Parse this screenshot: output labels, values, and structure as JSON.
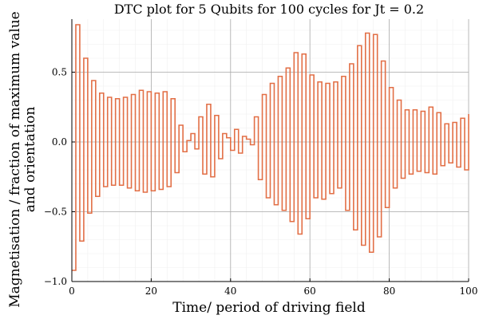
{
  "chart_data": {
    "type": "line",
    "style": "step",
    "title": "DTC plot for 5 Qubits for 100 cycles for Jt = 0.2",
    "xlabel": "Time/ period of driving field",
    "ylabel_line1": "Magnetisation / fraction of maximum value",
    "ylabel_line2": "and orientation",
    "xlim": [
      0,
      100
    ],
    "ylim": [
      -1.0,
      0.88
    ],
    "x_ticks": [
      0,
      20,
      40,
      60,
      80,
      100
    ],
    "x_tick_labels": [
      "0",
      "20",
      "40",
      "60",
      "80",
      "100"
    ],
    "y_ticks": [
      -1.0,
      -0.5,
      0.0,
      0.5
    ],
    "y_tick_labels": [
      "−1.0",
      "−0.5",
      "0.0",
      "0.5"
    ],
    "grid": true,
    "minor_grid": true,
    "legend": "none",
    "colors": {
      "series": "#e26f46",
      "major_grid": "#a9a9a9",
      "minor_grid": "#efefef",
      "axis": "#000000",
      "text": "#000000"
    },
    "series": [
      {
        "x_start": 0,
        "x_step": 1,
        "values": [
          -0.92,
          0.84,
          -0.71,
          0.6,
          -0.51,
          0.44,
          -0.39,
          0.35,
          -0.32,
          0.32,
          -0.31,
          0.31,
          -0.31,
          0.32,
          -0.33,
          0.34,
          -0.35,
          0.37,
          -0.36,
          0.36,
          -0.35,
          0.35,
          -0.34,
          0.36,
          -0.32,
          0.31,
          -0.22,
          0.12,
          -0.07,
          0.01,
          0.06,
          -0.05,
          0.18,
          -0.23,
          0.27,
          -0.25,
          0.19,
          -0.12,
          0.06,
          0.03,
          -0.06,
          0.09,
          -0.08,
          0.04,
          0.02,
          -0.02,
          0.18,
          -0.27,
          0.34,
          -0.4,
          0.42,
          -0.45,
          0.47,
          -0.49,
          0.53,
          -0.57,
          0.64,
          -0.66,
          0.63,
          -0.55,
          0.48,
          -0.4,
          0.43,
          -0.41,
          0.42,
          -0.37,
          0.43,
          -0.33,
          0.47,
          -0.49,
          0.56,
          -0.63,
          0.69,
          -0.74,
          0.78,
          -0.79,
          0.77,
          -0.68,
          0.58,
          -0.47,
          0.39,
          -0.33,
          0.3,
          -0.26,
          0.23,
          -0.23,
          0.23,
          -0.21,
          0.22,
          -0.22,
          0.25,
          -0.23,
          0.21,
          -0.17,
          0.13,
          -0.15,
          0.14,
          -0.18,
          0.17,
          -0.2,
          0.2
        ]
      }
    ]
  }
}
